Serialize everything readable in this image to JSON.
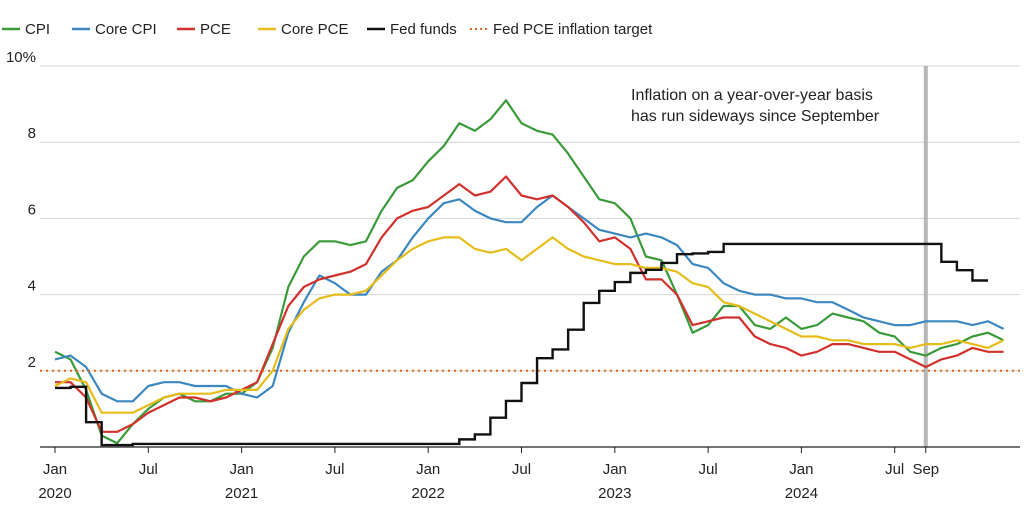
{
  "chart_data": {
    "type": "line",
    "title": "",
    "xlabel": "",
    "ylabel": "",
    "ylim": [
      0,
      10
    ],
    "xlim": [
      "2020-01",
      "2024-12"
    ],
    "y_ticks": [
      {
        "value": 2,
        "label": "2"
      },
      {
        "value": 4,
        "label": "4"
      },
      {
        "value": 6,
        "label": "6"
      },
      {
        "value": 8,
        "label": "8"
      },
      {
        "value": 10,
        "label": "10%"
      }
    ],
    "x_ticks": [
      {
        "date": "2020-01",
        "label": "Jan",
        "year": "2020"
      },
      {
        "date": "2020-07",
        "label": "Jul",
        "year": ""
      },
      {
        "date": "2021-01",
        "label": "Jan",
        "year": "2021"
      },
      {
        "date": "2021-07",
        "label": "Jul",
        "year": ""
      },
      {
        "date": "2022-01",
        "label": "Jan",
        "year": "2022"
      },
      {
        "date": "2022-07",
        "label": "Jul",
        "year": ""
      },
      {
        "date": "2023-01",
        "label": "Jan",
        "year": "2023"
      },
      {
        "date": "2023-07",
        "label": "Jul",
        "year": ""
      },
      {
        "date": "2024-01",
        "label": "Jan",
        "year": "2024"
      },
      {
        "date": "2024-07",
        "label": "Jul",
        "year": ""
      },
      {
        "date": "2024-09",
        "label": "Sep",
        "year": ""
      }
    ],
    "legend_position": "top",
    "grid": "horizontal",
    "series": [
      {
        "name": "CPI",
        "color": "#3a9a3a",
        "style": "solid",
        "x_start": "2020-01",
        "values": [
          2.5,
          2.3,
          1.5,
          0.3,
          0.1,
          0.6,
          1.0,
          1.3,
          1.4,
          1.2,
          1.2,
          1.4,
          1.4,
          1.7,
          2.6,
          4.2,
          5.0,
          5.4,
          5.4,
          5.3,
          5.4,
          6.2,
          6.8,
          7.0,
          7.5,
          7.9,
          8.5,
          8.3,
          8.6,
          9.1,
          8.5,
          8.3,
          8.2,
          7.7,
          7.1,
          6.5,
          6.4,
          6.0,
          5.0,
          4.9,
          4.0,
          3.0,
          3.2,
          3.7,
          3.7,
          3.2,
          3.1,
          3.4,
          3.1,
          3.2,
          3.5,
          3.4,
          3.3,
          3.0,
          2.9,
          2.5,
          2.4,
          2.6,
          2.7,
          2.9,
          3.0,
          2.8
        ]
      },
      {
        "name": "Core CPI",
        "color": "#3c87c0",
        "style": "solid",
        "x_start": "2020-01",
        "values": [
          2.3,
          2.4,
          2.1,
          1.4,
          1.2,
          1.2,
          1.6,
          1.7,
          1.7,
          1.6,
          1.6,
          1.6,
          1.4,
          1.3,
          1.6,
          3.0,
          3.8,
          4.5,
          4.3,
          4.0,
          4.0,
          4.6,
          4.9,
          5.5,
          6.0,
          6.4,
          6.5,
          6.2,
          6.0,
          5.9,
          5.9,
          6.3,
          6.6,
          6.3,
          6.0,
          5.7,
          5.6,
          5.5,
          5.6,
          5.5,
          5.3,
          4.8,
          4.7,
          4.3,
          4.1,
          4.0,
          4.0,
          3.9,
          3.9,
          3.8,
          3.8,
          3.6,
          3.4,
          3.3,
          3.2,
          3.2,
          3.3,
          3.3,
          3.3,
          3.2,
          3.3,
          3.1
        ]
      },
      {
        "name": "PCE",
        "color": "#d0312d",
        "style": "solid",
        "x_start": "2020-01",
        "values": [
          1.7,
          1.7,
          1.3,
          0.4,
          0.4,
          0.6,
          0.9,
          1.1,
          1.3,
          1.3,
          1.2,
          1.3,
          1.5,
          1.7,
          2.7,
          3.7,
          4.2,
          4.4,
          4.5,
          4.6,
          4.8,
          5.5,
          6.0,
          6.2,
          6.3,
          6.6,
          6.9,
          6.6,
          6.7,
          7.1,
          6.6,
          6.5,
          6.6,
          6.3,
          5.9,
          5.4,
          5.5,
          5.2,
          4.4,
          4.4,
          4.0,
          3.2,
          3.3,
          3.4,
          3.4,
          2.9,
          2.7,
          2.6,
          2.4,
          2.5,
          2.7,
          2.7,
          2.6,
          2.5,
          2.5,
          2.3,
          2.1,
          2.3,
          2.4,
          2.6,
          2.5,
          2.5
        ]
      },
      {
        "name": "Core PCE",
        "color": "#e6bc1a",
        "style": "solid",
        "x_start": "2020-01",
        "values": [
          1.6,
          1.8,
          1.7,
          0.9,
          0.9,
          0.9,
          1.1,
          1.3,
          1.4,
          1.4,
          1.4,
          1.5,
          1.5,
          1.5,
          2.0,
          3.1,
          3.6,
          3.9,
          4.0,
          4.0,
          4.1,
          4.5,
          4.9,
          5.2,
          5.4,
          5.5,
          5.5,
          5.2,
          5.1,
          5.2,
          4.9,
          5.2,
          5.5,
          5.2,
          5.0,
          4.9,
          4.8,
          4.8,
          4.7,
          4.7,
          4.6,
          4.3,
          4.2,
          3.8,
          3.7,
          3.5,
          3.3,
          3.1,
          2.9,
          2.9,
          2.8,
          2.8,
          2.7,
          2.7,
          2.7,
          2.6,
          2.7,
          2.7,
          2.8,
          2.7,
          2.6,
          2.8
        ]
      },
      {
        "name": "Fed funds",
        "color": "#111111",
        "style": "step",
        "points": [
          [
            "2020-01",
            1.55
          ],
          [
            "2020-02",
            1.58
          ],
          [
            "2020-03",
            0.65
          ],
          [
            "2020-04",
            0.05
          ],
          [
            "2020-06",
            0.08
          ],
          [
            "2021-06",
            0.08
          ],
          [
            "2022-03",
            0.2
          ],
          [
            "2022-04",
            0.33
          ],
          [
            "2022-05",
            0.77
          ],
          [
            "2022-06",
            1.21
          ],
          [
            "2022-07",
            1.68
          ],
          [
            "2022-08",
            2.33
          ],
          [
            "2022-09",
            2.56
          ],
          [
            "2022-10",
            3.08
          ],
          [
            "2022-11",
            3.78
          ],
          [
            "2022-12",
            4.1
          ],
          [
            "2023-01",
            4.33
          ],
          [
            "2023-02",
            4.57
          ],
          [
            "2023-03",
            4.65
          ],
          [
            "2023-04",
            4.83
          ],
          [
            "2023-05",
            5.06
          ],
          [
            "2023-06",
            5.08
          ],
          [
            "2023-07",
            5.12
          ],
          [
            "2023-08",
            5.33
          ],
          [
            "2024-09",
            5.33
          ],
          [
            "2024-10",
            4.86
          ],
          [
            "2024-11",
            4.64
          ],
          [
            "2024-12",
            4.37
          ],
          [
            "2025-01",
            4.37
          ]
        ]
      },
      {
        "name": "Fed PCE inflation target",
        "color": "#d96a1f",
        "style": "dotted",
        "y": 2
      }
    ],
    "markers": [
      {
        "date": "2024-09",
        "type": "vertical-band",
        "color": "#aaaaaa"
      }
    ],
    "annotations": [
      {
        "lines": [
          "Inflation on a year-over-year basis",
          "has run sideways since September"
        ]
      }
    ]
  }
}
